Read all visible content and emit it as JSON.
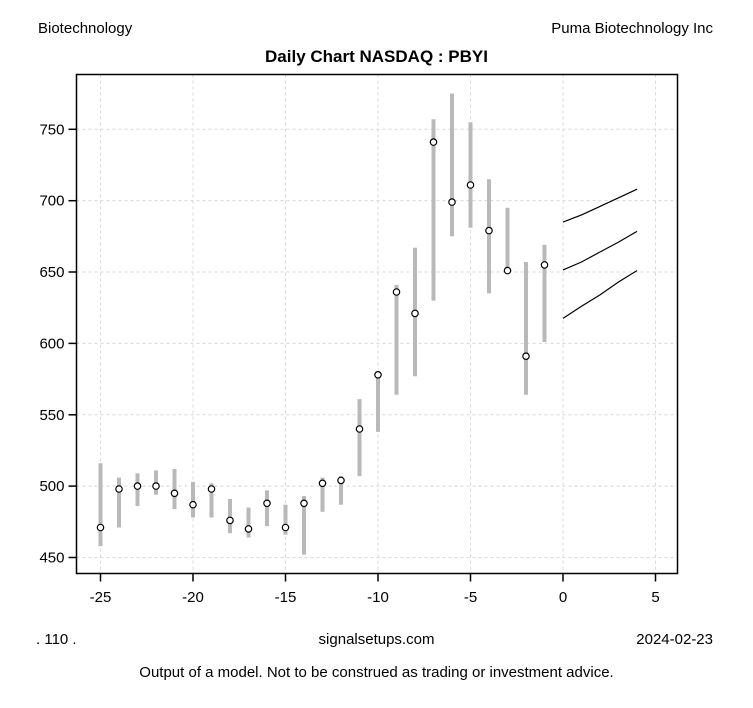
{
  "header": {
    "sector": "Biotechnology",
    "company": "Puma Biotechnology Inc",
    "title": "Daily Chart NASDAQ : PBYI"
  },
  "footer": {
    "left_code": ". 110 .",
    "site": "signalsetups.com",
    "date": "2024-02-23",
    "disclaimer": "Output of a model.  Not to be construed as trading or investment advice."
  },
  "chart_data": {
    "type": "bar",
    "subtype": "high-low-close bars with forecast fan",
    "title": "Daily Chart NASDAQ : PBYI",
    "xlabel": "",
    "ylabel": "",
    "xlim": [
      -26.3,
      6.2
    ],
    "ylim": [
      439,
      788
    ],
    "x_ticks": [
      -25,
      -20,
      -15,
      -10,
      -5,
      0,
      5
    ],
    "y_ticks": [
      450,
      500,
      550,
      600,
      650,
      700,
      750
    ],
    "grid": "dashed both axes",
    "legend": "none",
    "bar_columns": [
      "day_offset",
      "high",
      "low",
      "close"
    ],
    "bars": [
      [
        -25,
        516,
        458,
        471
      ],
      [
        -24,
        506,
        471,
        498
      ],
      [
        -23,
        509,
        486,
        500
      ],
      [
        -22,
        511,
        494,
        500
      ],
      [
        -21,
        512,
        484,
        495
      ],
      [
        -20,
        503,
        478,
        487
      ],
      [
        -19,
        502,
        478,
        498
      ],
      [
        -18,
        491,
        467,
        476
      ],
      [
        -17,
        485,
        464,
        470
      ],
      [
        -16,
        497,
        472,
        488
      ],
      [
        -15,
        487,
        466,
        471
      ],
      [
        -14,
        493,
        452,
        488
      ],
      [
        -13,
        506,
        482,
        502
      ],
      [
        -12,
        507,
        487,
        504
      ],
      [
        -11,
        561,
        507,
        540
      ],
      [
        -10,
        578,
        538,
        578
      ],
      [
        -9,
        641,
        564,
        636
      ],
      [
        -8,
        667,
        577,
        621
      ],
      [
        -7,
        757,
        630,
        741
      ],
      [
        -6,
        775,
        675,
        699
      ],
      [
        -5,
        755,
        681,
        711
      ],
      [
        -4,
        715,
        635,
        679
      ],
      [
        -3,
        695,
        652,
        651
      ],
      [
        -2,
        657,
        564,
        591
      ],
      [
        -1,
        669,
        601,
        655
      ]
    ],
    "forecast": [
      {
        "name": "upper",
        "points": [
          [
            0,
            685
          ],
          [
            1,
            690
          ],
          [
            2,
            696
          ],
          [
            3,
            702
          ],
          [
            4,
            708
          ]
        ]
      },
      {
        "name": "mid",
        "points": [
          [
            0,
            651.5
          ],
          [
            1,
            657
          ],
          [
            2,
            664
          ],
          [
            3,
            671
          ],
          [
            4,
            678.5
          ]
        ]
      },
      {
        "name": "lower",
        "points": [
          [
            0,
            617.5
          ],
          [
            1,
            626
          ],
          [
            2,
            634
          ],
          [
            3,
            643
          ],
          [
            4,
            651
          ]
        ]
      }
    ],
    "colors": {
      "bar": "#b9b9b9",
      "close_marker_stroke": "#000000",
      "close_marker_fill": "#ffffff",
      "grid": "#d8d8d8",
      "forecast": "#000000",
      "axis": "#000000",
      "background": "#ffffff"
    }
  }
}
